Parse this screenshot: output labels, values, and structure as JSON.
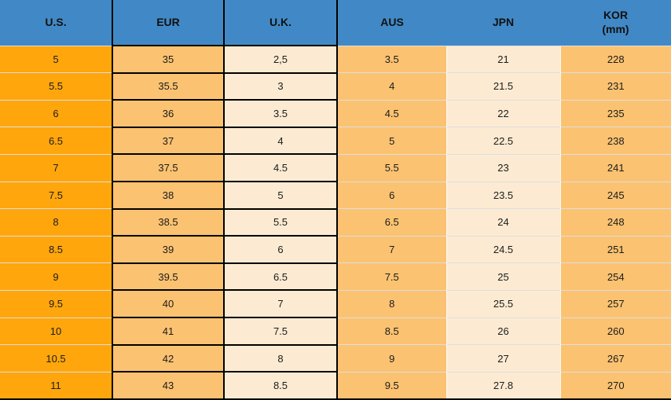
{
  "table": {
    "columns": [
      {
        "id": "us",
        "label": "U.S."
      },
      {
        "id": "eur",
        "label": "EUR"
      },
      {
        "id": "uk",
        "label": "U.K."
      },
      {
        "id": "aus",
        "label": "AUS"
      },
      {
        "id": "jpn",
        "label": "JPN"
      },
      {
        "id": "kor",
        "label": "KOR",
        "sublabel": "(mm)"
      }
    ],
    "rows": [
      [
        "5",
        "35",
        "2,5",
        "3.5",
        "21",
        "228"
      ],
      [
        "5.5",
        "35.5",
        "3",
        "4",
        "21.5",
        "231"
      ],
      [
        "6",
        "36",
        "3.5",
        "4.5",
        "22",
        "235"
      ],
      [
        "6.5",
        "37",
        "4",
        "5",
        "22.5",
        "238"
      ],
      [
        "7",
        "37.5",
        "4.5",
        "5.5",
        "23",
        "241"
      ],
      [
        "7.5",
        "38",
        "5",
        "6",
        "23.5",
        "245"
      ],
      [
        "8",
        "38.5",
        "5.5",
        "6.5",
        "24",
        "248"
      ],
      [
        "8.5",
        "39",
        "6",
        "7",
        "24.5",
        "251"
      ],
      [
        "9",
        "39.5",
        "6.5",
        "7.5",
        "25",
        "254"
      ],
      [
        "9.5",
        "40",
        "7",
        "8",
        "25.5",
        "257"
      ],
      [
        "10",
        "41",
        "7.5",
        "8.5",
        "26",
        "260"
      ],
      [
        "10.5",
        "42",
        "8",
        "9",
        "27",
        "267"
      ],
      [
        "11",
        "43",
        "8.5",
        "9.5",
        "27.8",
        "270"
      ]
    ]
  },
  "chart_data": {
    "type": "table",
    "columns": [
      "U.S.",
      "EUR",
      "U.K.",
      "AUS",
      "JPN",
      "KOR (mm)"
    ],
    "rows": [
      [
        "5",
        "35",
        "2,5",
        "3.5",
        "21",
        "228"
      ],
      [
        "5.5",
        "35.5",
        "3",
        "4",
        "21.5",
        "231"
      ],
      [
        "6",
        "36",
        "3.5",
        "4.5",
        "22",
        "235"
      ],
      [
        "6.5",
        "37",
        "4",
        "5",
        "22.5",
        "238"
      ],
      [
        "7",
        "37.5",
        "4.5",
        "5.5",
        "23",
        "241"
      ],
      [
        "7.5",
        "38",
        "5",
        "6",
        "23.5",
        "245"
      ],
      [
        "8",
        "38.5",
        "5.5",
        "6.5",
        "24",
        "248"
      ],
      [
        "8.5",
        "39",
        "6",
        "7",
        "24.5",
        "251"
      ],
      [
        "9",
        "39.5",
        "6.5",
        "7.5",
        "25",
        "254"
      ],
      [
        "9.5",
        "40",
        "7",
        "8",
        "25.5",
        "257"
      ],
      [
        "10",
        "41",
        "7.5",
        "8.5",
        "26",
        "260"
      ],
      [
        "10.5",
        "42",
        "8",
        "9",
        "27",
        "267"
      ],
      [
        "11",
        "43",
        "8.5",
        "9.5",
        "27.8",
        "270"
      ]
    ]
  },
  "colors": {
    "header_bg": "#4189C6",
    "col_us": "#FFA60D",
    "col_light_orange": "#FBC271",
    "col_cream": "#FCEBD2",
    "row_separator": "#DEDEDE",
    "border_black": "#000000",
    "text": "#1C1C1C"
  }
}
